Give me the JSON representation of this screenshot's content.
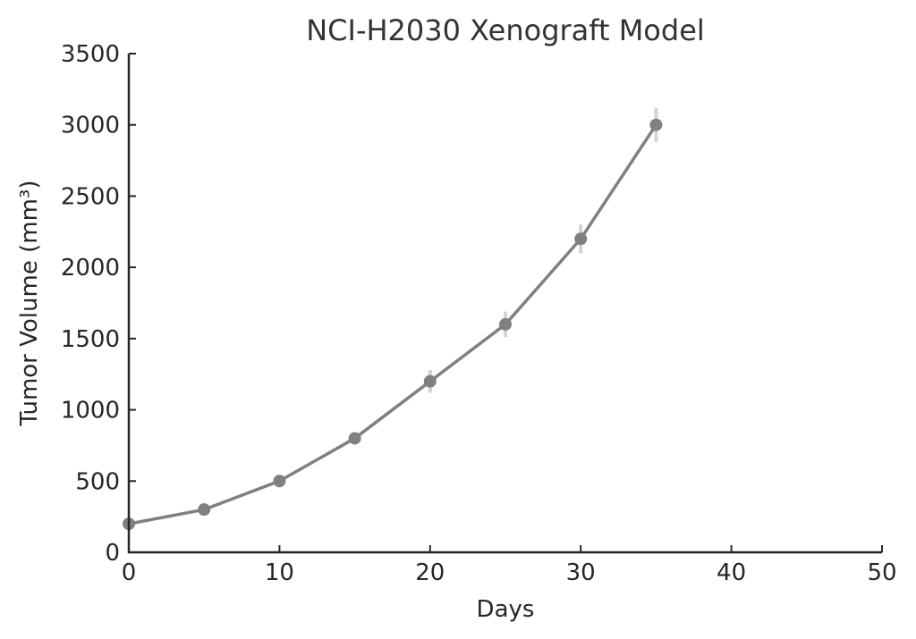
{
  "chart_data": {
    "type": "line",
    "title": "NCI-H2030 Xenograft Model",
    "xlabel": "Days",
    "ylabel": "Tumor Volume (mm³)",
    "xlim": [
      0,
      50
    ],
    "ylim": [
      0,
      3500
    ],
    "xticks": [
      0,
      10,
      20,
      30,
      40,
      50
    ],
    "yticks": [
      0,
      500,
      1000,
      1500,
      2000,
      2500,
      3000,
      3500
    ],
    "grid": false,
    "legend": null,
    "series": [
      {
        "name": "Tumor Volume",
        "color": "#808080",
        "error_color": "#d3d3d3",
        "x": [
          0,
          5,
          10,
          15,
          20,
          25,
          30,
          35
        ],
        "values": [
          200,
          300,
          500,
          800,
          1200,
          1600,
          2200,
          3000
        ],
        "errors": [
          10,
          15,
          25,
          40,
          80,
          90,
          100,
          120
        ]
      }
    ]
  }
}
